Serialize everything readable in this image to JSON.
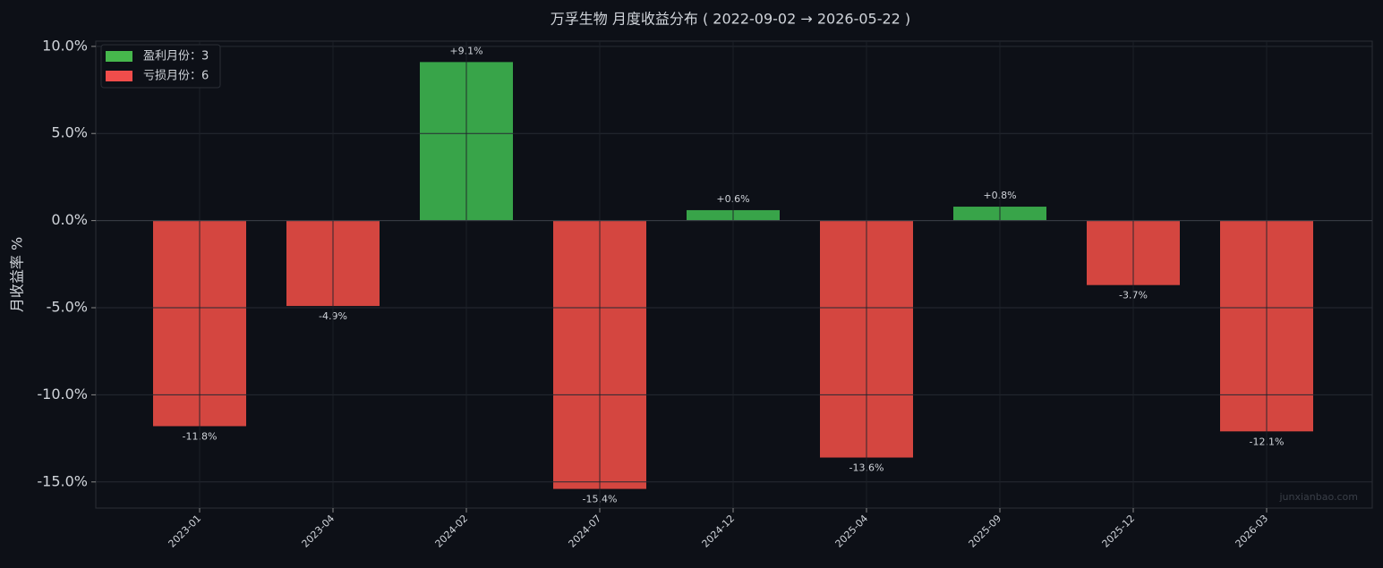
{
  "chart_data": {
    "type": "bar",
    "title": "万孚生物 月度收益分布 ( 2022-09-02 → 2026-05-22 )",
    "y_label": "月收益率 %",
    "categories": [
      "2023-01",
      "2023-04",
      "2024-02",
      "2024-07",
      "2024-12",
      "2025-04",
      "2025-09",
      "2025-12",
      "2026-03"
    ],
    "values": [
      -11.8,
      -4.9,
      9.1,
      -15.4,
      0.6,
      -13.6,
      0.8,
      -3.7,
      -12.1
    ],
    "value_labels": [
      "-11.8%",
      "-4.9%",
      "+9.1%",
      "-15.4%",
      "+0.6%",
      "-13.6%",
      "+0.8%",
      "-3.7%",
      "-12.1%"
    ],
    "colors": {
      "positive": "#38a449",
      "negative": "#d44640"
    },
    "ylim": [
      -16.5,
      10.3
    ],
    "yticks": [
      {
        "value": -15,
        "label": "-15.0%"
      },
      {
        "value": -10,
        "label": "-10.0%"
      },
      {
        "value": -5,
        "label": "-5.0%"
      },
      {
        "value": 0,
        "label": "0.0%"
      },
      {
        "value": 5,
        "label": "5.0%"
      },
      {
        "value": 10,
        "label": "10.0%"
      }
    ],
    "grid": true,
    "legend": {
      "position": "upper left",
      "entries": [
        {
          "label": "盈利月份：3",
          "color": "#46b74c"
        },
        {
          "label": "亏损月份：6",
          "color": "#f04d4b"
        }
      ]
    },
    "watermark": "junxianbao.com"
  }
}
